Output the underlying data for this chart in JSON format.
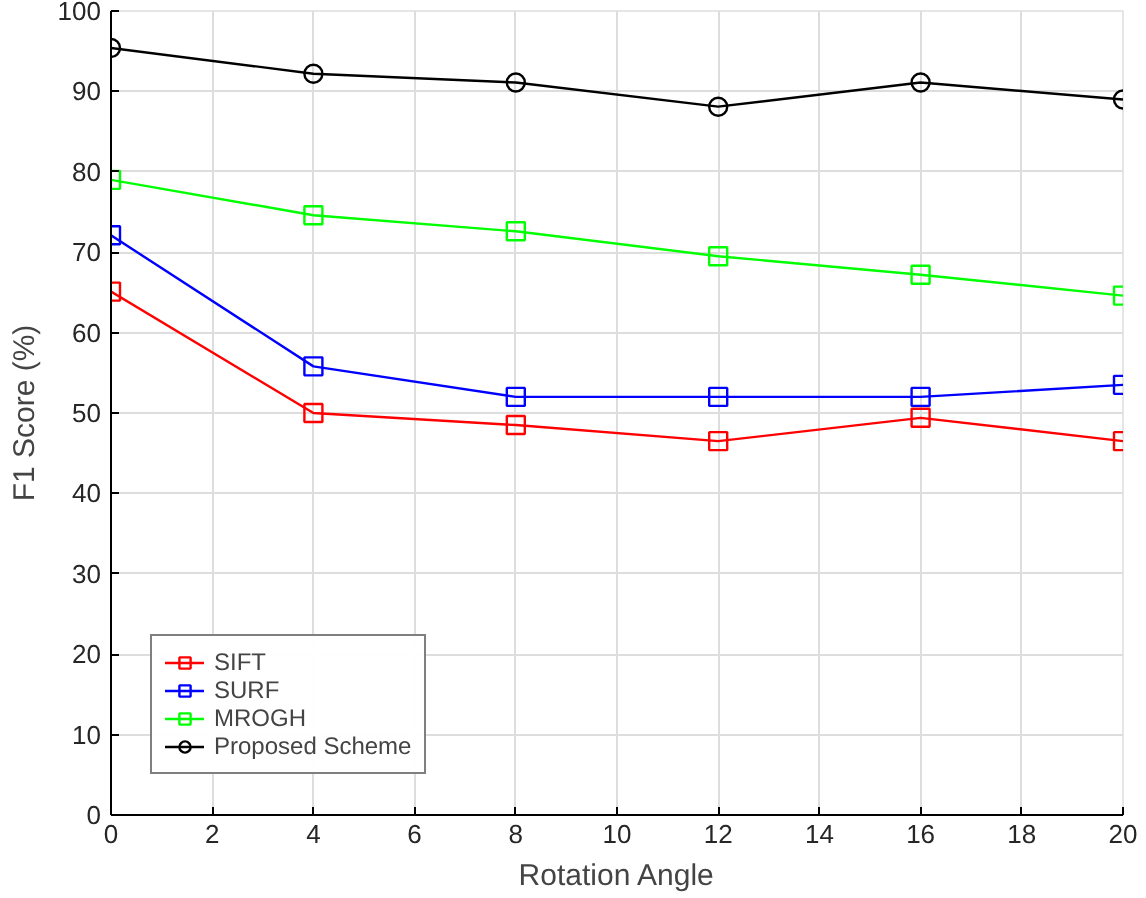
{
  "chart_data": {
    "type": "line",
    "xlabel": "Rotation Angle",
    "ylabel": "F1 Score (%)",
    "x": [
      0,
      4,
      8,
      12,
      16,
      20
    ],
    "series": [
      {
        "name": "SIFT",
        "color": "#ff0000",
        "marker": "square",
        "values": [
          65.1,
          50.0,
          48.5,
          46.5,
          49.4,
          46.5
        ]
      },
      {
        "name": "SURF",
        "color": "#0000ff",
        "marker": "square",
        "values": [
          72.1,
          55.8,
          52.0,
          52.0,
          52.0,
          53.5
        ]
      },
      {
        "name": "MROGH",
        "color": "#00ff00",
        "marker": "square",
        "values": [
          79.0,
          74.6,
          72.6,
          69.5,
          67.2,
          64.6
        ]
      },
      {
        "name": "Proposed Scheme",
        "color": "#000000",
        "marker": "circle",
        "values": [
          95.4,
          92.2,
          91.1,
          88.1,
          91.1,
          89.0
        ]
      }
    ],
    "xlim": [
      0,
      20
    ],
    "xticks": [
      0,
      2,
      4,
      6,
      8,
      10,
      12,
      14,
      16,
      18,
      20
    ],
    "ylim": [
      0,
      100
    ],
    "yticks": [
      0,
      10,
      20,
      30,
      40,
      50,
      60,
      70,
      80,
      90,
      100
    ],
    "grid": true,
    "legend": "bottom left",
    "line_style": "solid"
  }
}
